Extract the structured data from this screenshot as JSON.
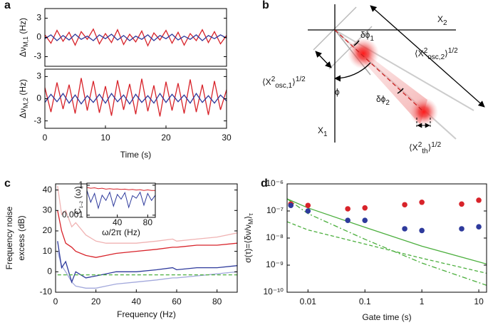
{
  "panel_labels": [
    "a",
    "b",
    "c",
    "d"
  ],
  "diagram": {
    "x2": {
      "text": "X",
      "sub": "2"
    },
    "x1": {
      "text": "X",
      "sub": "1"
    },
    "dphi1": {
      "text": "δϕ",
      "sub": "1"
    },
    "dphi2": {
      "text": "δϕ",
      "sub": "2"
    },
    "phi": "ϕ",
    "osc2": {
      "text": "⟨X",
      "sup": "2",
      "sub": "osc,2",
      "close": "⟩",
      "sup2": "1/2"
    },
    "osc1": {
      "text": "⟨X",
      "sup": "2",
      "sub": "osc,1",
      "close": "⟩",
      "sup2": "1/2"
    },
    "th": {
      "text": "⟨X",
      "sup": "2",
      "sub": "th",
      "close": "⟩",
      "sup2": "1/2"
    }
  },
  "chart_data": [
    {
      "type": "line",
      "ylabel": {
        "text": "Δν",
        "sub": "M,1",
        "rest": " (Hz)"
      },
      "xlim": [
        0,
        30
      ],
      "ylim": [
        -4.5,
        4.5
      ],
      "yticks": [
        -3,
        0,
        3
      ],
      "x": [
        0,
        1,
        2,
        3,
        4,
        5,
        6,
        7,
        8,
        9,
        10,
        11,
        12,
        13,
        14,
        15,
        16,
        17,
        18,
        19,
        20,
        21,
        22,
        23,
        24,
        25,
        26,
        27,
        28,
        29,
        30
      ],
      "series": [
        {
          "color": "#d8232a",
          "values": [
            0.4,
            -0.9,
            1.1,
            -0.6,
            0.8,
            -1.2,
            0.9,
            -0.3,
            1.3,
            -1.0,
            0.6,
            -0.8,
            1.2,
            -1.1,
            0.5,
            -0.7,
            1.0,
            -1.3,
            0.7,
            -0.4,
            1.1,
            -0.9,
            0.8,
            -1.2,
            0.6,
            -0.5,
            1.2,
            -0.8,
            0.9,
            -1.0,
            0.3
          ]
        },
        {
          "color": "#2e3a9c",
          "values": [
            -0.2,
            0.4,
            -0.5,
            0.3,
            -0.4,
            0.5,
            -0.3,
            0.2,
            -0.5,
            0.4,
            -0.2,
            0.5,
            -0.4,
            0.3,
            -0.5,
            0.2,
            -0.3,
            0.4,
            -0.5,
            0.3,
            -0.2,
            0.5,
            -0.4,
            0.2,
            -0.3,
            0.4,
            -0.5,
            0.3,
            -0.2,
            0.4,
            -0.1
          ]
        }
      ]
    },
    {
      "type": "line",
      "ylabel": {
        "text": "Δν",
        "sub": "M,2",
        "rest": " (Hz)"
      },
      "xlabel": "Time (s)",
      "xlim": [
        0,
        30
      ],
      "ylim": [
        -4,
        4
      ],
      "xticks": [
        0,
        10,
        20,
        30
      ],
      "yticks": [
        -3,
        0,
        3
      ],
      "x": [
        0,
        1,
        2,
        3,
        4,
        5,
        6,
        7,
        8,
        9,
        10,
        11,
        12,
        13,
        14,
        15,
        16,
        17,
        18,
        19,
        20,
        21,
        22,
        23,
        24,
        25,
        26,
        27,
        28,
        29,
        30
      ],
      "series": [
        {
          "color": "#d8232a",
          "values": [
            1.5,
            -1.8,
            2.2,
            -1.4,
            1.9,
            -2.0,
            2.8,
            -1.6,
            2.4,
            -1.9,
            1.7,
            -2.3,
            2.5,
            -1.5,
            2.0,
            -2.1,
            2.7,
            -1.7,
            1.8,
            -2.4,
            2.3,
            -1.6,
            2.1,
            -2.0,
            2.6,
            -1.8,
            1.9,
            -2.2,
            2.4,
            -1.5,
            1.2
          ]
        },
        {
          "color": "#2e3a9c",
          "values": [
            -0.5,
            0.6,
            -0.4,
            0.7,
            -0.6,
            0.5,
            -0.7,
            0.4,
            -0.5,
            0.6,
            -0.6,
            0.7,
            -0.4,
            0.5,
            -0.7,
            0.6,
            -0.5,
            0.4,
            -0.6,
            0.7,
            -0.5,
            0.6,
            -0.4,
            0.5,
            -0.6,
            0.7,
            -0.5,
            0.4,
            -0.6,
            0.5,
            -0.3
          ]
        }
      ]
    },
    {
      "type": "line",
      "ylabel": [
        "Frequency noise",
        "excess (dB)"
      ],
      "xlabel": "Frequency (Hz)",
      "xlim": [
        0,
        90
      ],
      "ylim": [
        -10,
        43
      ],
      "xticks": [
        0,
        20,
        40,
        60,
        80
      ],
      "yticks": [
        -10,
        0,
        10,
        20,
        30,
        40
      ],
      "x": [
        1,
        3,
        5,
        8,
        10,
        15,
        20,
        25,
        30,
        40,
        50,
        58,
        60,
        70,
        80,
        90
      ],
      "series": [
        {
          "color": "#f0b3b3",
          "values": [
            42,
            28,
            30,
            22,
            24,
            18,
            15,
            14,
            14,
            14,
            15,
            16,
            15,
            16,
            17,
            19
          ]
        },
        {
          "color": "#d8232a",
          "values": [
            30,
            20,
            14,
            12,
            10,
            8,
            7,
            8,
            9,
            10,
            11,
            12,
            12,
            13,
            13,
            14
          ]
        },
        {
          "color": "#a3a9dc",
          "values": [
            10,
            3,
            0,
            -5,
            -7,
            -8,
            -8,
            -7,
            -6,
            -5,
            -4,
            -3,
            -3,
            -2,
            -1,
            0
          ]
        },
        {
          "color": "#2e3a9c",
          "values": [
            15,
            2,
            5,
            -5,
            0,
            -3,
            -2,
            -1,
            0,
            0,
            1,
            2,
            1,
            2,
            2,
            3
          ]
        },
        {
          "color": "#4caf3e",
          "style": "dashed",
          "values": [
            -1.5,
            -1.5,
            -1.5,
            -1.5,
            -1.5,
            -1.5,
            -1.5,
            -1.5,
            -1.5,
            -1.5,
            -1.5,
            -1.5,
            -1.5,
            -1.5,
            -1.5,
            -1.5
          ]
        }
      ]
    },
    {
      "type": "line",
      "ylabel": {
        "text": "C",
        "sub": "1–2",
        "rest": " (ω)"
      },
      "xlabel": "ω/2π (Hz)",
      "xlim": [
        0,
        90
      ],
      "ylim": [
        0.0006,
        1.6
      ],
      "yscale": "log",
      "xticks": [
        40,
        80
      ],
      "yticks": [
        0.001,
        1
      ],
      "x": [
        0,
        5,
        10,
        15,
        20,
        25,
        30,
        35,
        40,
        45,
        50,
        55,
        60,
        65,
        70,
        75,
        80,
        85,
        90
      ],
      "series": [
        {
          "color": "#d8232a",
          "values": [
            0.6,
            0.5,
            0.55,
            0.45,
            0.5,
            0.4,
            0.45,
            0.4,
            0.42,
            0.38,
            0.4,
            0.35,
            0.38,
            0.33,
            0.36,
            0.3,
            0.34,
            0.3,
            0.3
          ]
        },
        {
          "color": "#2e3a9c",
          "values": [
            0.3,
            0.02,
            0.15,
            0.005,
            0.1,
            0.03,
            0.2,
            0.008,
            0.12,
            0.04,
            0.18,
            0.006,
            0.09,
            0.05,
            0.2,
            0.01,
            0.15,
            0.03,
            0.1
          ]
        }
      ]
    },
    {
      "type": "scatter",
      "ylabel": {
        "text": "σ(τ)=⟨δν/ν",
        "sub": "M",
        "close": "⟩",
        "sub2": "τ"
      },
      "xlabel": "Gate time (s)",
      "xscale": "log",
      "yscale": "log",
      "xlim": [
        0.0043,
        13.7
      ],
      "ylim": [
        1e-10,
        1e-06
      ],
      "xticks": [
        0.01,
        0.1,
        1,
        10
      ],
      "yticks": [
        {
          "value": 1e-10,
          "label": "10⁻¹⁰"
        },
        {
          "value": 1e-09,
          "label": "10⁻⁹"
        },
        {
          "value": 1e-08,
          "label": "10⁻⁸"
        },
        {
          "value": 1e-07,
          "label": "10⁻⁷"
        },
        {
          "value": 1e-06,
          "label": "10⁻⁶"
        }
      ],
      "x": [
        0.005,
        0.01,
        0.05,
        0.1,
        0.5,
        1,
        5,
        10
      ],
      "series": [
        {
          "color": "#d8232a",
          "values": [
            1.8e-07,
            1.6e-07,
            1.2e-07,
            1.3e-07,
            1.7e-07,
            2.1e-07,
            1.8e-07,
            2.5e-07
          ]
        },
        {
          "color": "#2e3a9c",
          "values": [
            1.6e-07,
            1e-07,
            4.5e-08,
            4.5e-08,
            2.2e-08,
            1.9e-08,
            2.2e-08,
            2.6e-08
          ]
        }
      ],
      "fits_x": [
        0.0043,
        0.01,
        0.1,
        1,
        13.7
      ],
      "fits": [
        {
          "color": "#4caf3e",
          "style": "solid",
          "values": [
            2.8e-07,
            1.3e-07,
            2.5e-08,
            5e-09,
            1.1e-09
          ]
        },
        {
          "color": "#4caf3e",
          "style": "dashed",
          "values": [
            4e-08,
            2e-08,
            6e-09,
            1.8e-09,
            5e-10
          ]
        },
        {
          "color": "#4caf3e",
          "style": "dashdot",
          "values": [
            2.8e-07,
            8e-08,
            9e-09,
            1.2e-09,
            1.8e-10
          ]
        }
      ]
    }
  ]
}
